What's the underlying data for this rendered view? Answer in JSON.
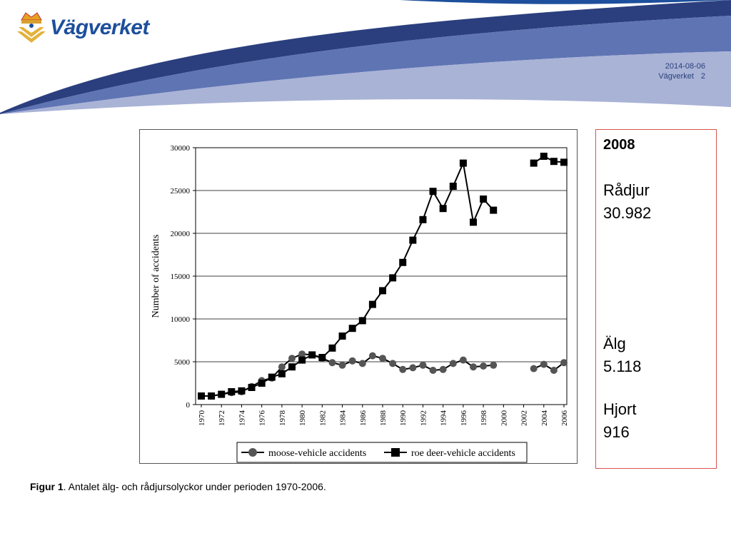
{
  "header": {
    "logo_text": "Vägverket",
    "date": "2014-08-06",
    "org": "Vägverket",
    "page_number": "2"
  },
  "infobox": {
    "year": "2008",
    "roe_deer_label": "Rådjur",
    "roe_deer_value": "30.982",
    "moose_label": "Älg",
    "moose_value": "5.118",
    "deer_label": "Hjort",
    "deer_value": "916"
  },
  "caption": {
    "bold": "Figur 1",
    "text": ". Antalet älg- och rådjursolyckor under perioden 1970-2006."
  },
  "colors": {
    "brand_blue": "#1d4f9c",
    "swoosh_light": "#a9b3d6",
    "swoosh_dark": "#2b3f7e",
    "infobox_border": "#d9534f"
  },
  "chart_data": {
    "type": "line",
    "ylabel": "Number of accidents",
    "xlabel": "",
    "ylim": [
      0,
      30000
    ],
    "yticks": [
      0,
      5000,
      10000,
      15000,
      20000,
      25000,
      30000
    ],
    "xlim": [
      1970,
      2006
    ],
    "xticks": [
      1970,
      1972,
      1974,
      1976,
      1978,
      1980,
      1982,
      1984,
      1986,
      1988,
      1990,
      1992,
      1994,
      1996,
      1998,
      2000,
      2002,
      2004,
      2006
    ],
    "grid": "horizontal",
    "legend_position": "bottom",
    "series": [
      {
        "name": "moose-vehicle accidents",
        "marker": "circle",
        "x": [
          1970,
          1971,
          1972,
          1973,
          1974,
          1975,
          1976,
          1977,
          1978,
          1979,
          1980,
          1981,
          1982,
          1983,
          1984,
          1985,
          1986,
          1987,
          1988,
          1989,
          1990,
          1991,
          1992,
          1993,
          1994,
          1995,
          1996,
          1997,
          1998,
          1999,
          null,
          2003,
          2004,
          2005,
          2006
        ],
        "values": [
          1000,
          1000,
          1200,
          1400,
          1500,
          2100,
          2800,
          3100,
          4400,
          5400,
          5900,
          5800,
          5400,
          4900,
          4600,
          5100,
          4800,
          5700,
          5400,
          4800,
          4100,
          4300,
          4600,
          4000,
          4100,
          4800,
          5200,
          4400,
          4500,
          4600,
          null,
          4200,
          4700,
          4000,
          4900
        ]
      },
      {
        "name": "roe deer-vehicle accidents",
        "marker": "square",
        "x": [
          1970,
          1971,
          1972,
          1973,
          1974,
          1975,
          1976,
          1977,
          1978,
          1979,
          1980,
          1981,
          1982,
          1983,
          1984,
          1985,
          1986,
          1987,
          1988,
          1989,
          1990,
          1991,
          1992,
          1993,
          1994,
          1995,
          1996,
          1997,
          1998,
          1999,
          null,
          2003,
          2004,
          2005,
          2006
        ],
        "values": [
          1000,
          1000,
          1200,
          1500,
          1600,
          2000,
          2500,
          3200,
          3600,
          4400,
          5200,
          5800,
          5500,
          6600,
          8000,
          8900,
          9800,
          11700,
          13300,
          14800,
          16600,
          19200,
          21600,
          24900,
          22900,
          25500,
          28200,
          21300,
          24000,
          22700,
          null,
          28200,
          29000,
          28400,
          28300
        ]
      }
    ]
  }
}
